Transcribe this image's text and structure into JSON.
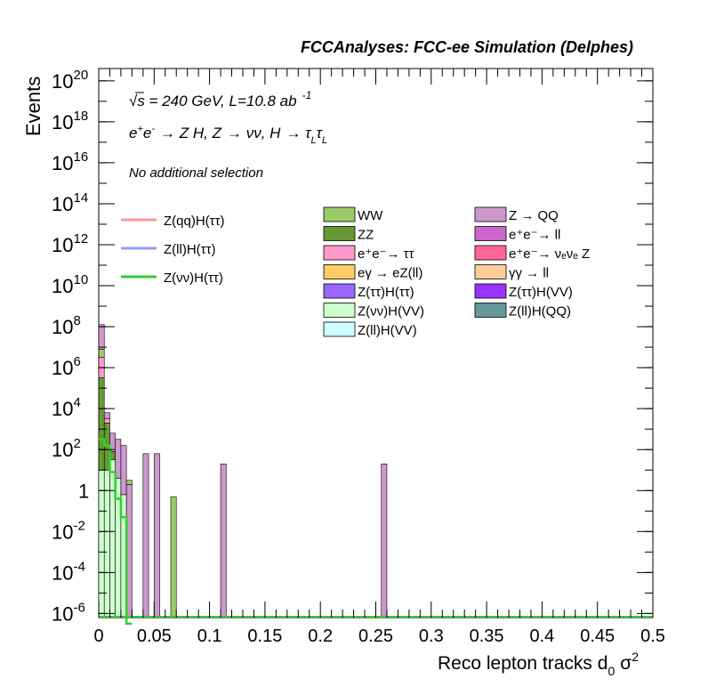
{
  "chart_data": {
    "type": "bar",
    "title": "FCCAnalyses: FCC-ee Simulation (Delphes)",
    "annotations": {
      "energy_lumi": "√s = 240 GeV, L=10.8 ab",
      "energy_lumi_exp": "-1",
      "process": "e⁺e⁻ → Z H, Z → νν, H → τ_L τ_L",
      "process_parts": {
        "e": "e",
        "plus": "+",
        "minus": "-",
        "arrow1": "→ Z H, Z",
        "arrow2": "→ νν, H",
        "arrow3": "→ τ",
        "sub1": "L",
        "tau2": "τ",
        "sub2": "L"
      },
      "selection": "No additional selection"
    },
    "xlabel": "Reco lepton tracks d",
    "xlabel_sub": "0",
    "xlabel_tail": "σ",
    "xlabel_sup": "2",
    "ylabel": "Events",
    "xlim": [
      0,
      0.5
    ],
    "ylim_log10": [
      -6.2,
      20.6
    ],
    "yscale": "log",
    "xticks": [
      "0",
      "0.05",
      "0.1",
      "0.15",
      "0.2",
      "0.25",
      "0.3",
      "0.35",
      "0.4",
      "0.45",
      "0.5"
    ],
    "yticks": [
      {
        "base": "10",
        "exp": "20",
        "log": 20
      },
      {
        "base": "10",
        "exp": "18",
        "log": 18
      },
      {
        "base": "10",
        "exp": "16",
        "log": 16
      },
      {
        "base": "10",
        "exp": "14",
        "log": 14
      },
      {
        "base": "10",
        "exp": "12",
        "log": 12
      },
      {
        "base": "10",
        "exp": "10",
        "log": 10
      },
      {
        "base": "10",
        "exp": "8",
        "log": 8
      },
      {
        "base": "10",
        "exp": "6",
        "log": 6
      },
      {
        "base": "10",
        "exp": "4",
        "log": 4
      },
      {
        "base": "10",
        "exp": "2",
        "log": 2
      },
      {
        "base": "1",
        "exp": "",
        "log": 0
      },
      {
        "base": "10",
        "exp": "-2",
        "log": -2
      },
      {
        "base": "10",
        "exp": "-4",
        "log": -4
      },
      {
        "base": "10",
        "exp": "-6",
        "log": -6
      }
    ],
    "bin_width": 0.005,
    "stack_bins": [
      {
        "x0": 0.0,
        "layers": [
          {
            "name": "Z(vv)H(VV)",
            "log": 1
          },
          {
            "name": "Z(ττ)H(VV)",
            "log": 0.3
          },
          {
            "name": "Z(ττ)H(ττ)",
            "log": 0.5
          },
          {
            "name": "ZZ",
            "log": 5.5
          },
          {
            "name": "e+e- → ττ",
            "log": 6.5
          },
          {
            "name": "WW",
            "log": 6.9
          },
          {
            "name": "Z → QQ",
            "log": 8.1
          }
        ]
      },
      {
        "x0": 0.005,
        "layers": [
          {
            "name": "Z(vv)H(VV)",
            "log": 1
          },
          {
            "name": "ZZ",
            "log": 3.3
          },
          {
            "name": "e+e- → ττ",
            "log": 3.5
          },
          {
            "name": "Z → QQ",
            "log": 3.8
          }
        ]
      },
      {
        "x0": 0.01,
        "layers": [
          {
            "name": "Z(vv)H(VV)",
            "log": 1.5
          },
          {
            "name": "ZZ",
            "log": 1.9
          },
          {
            "name": "Z → QQ",
            "log": 2.8
          }
        ]
      },
      {
        "x0": 0.015,
        "layers": [
          {
            "name": "Z(vv)H(VV)",
            "log": 0.6
          },
          {
            "name": "Z → QQ",
            "log": 2.5
          }
        ]
      },
      {
        "x0": 0.02,
        "layers": [
          {
            "name": "Z(vv)H(VV)",
            "log": -0.2
          },
          {
            "name": "Z → QQ",
            "log": 2.2
          }
        ]
      },
      {
        "x0": 0.025,
        "layers": [
          {
            "name": "Z → QQ",
            "log": 0.3
          },
          {
            "name": "WW",
            "log": 0.5
          }
        ]
      },
      {
        "x0": 0.04,
        "layers": [
          {
            "name": "Z → QQ",
            "log": 1.8
          }
        ]
      },
      {
        "x0": 0.05,
        "layers": [
          {
            "name": "Z → QQ",
            "log": 1.8
          }
        ]
      },
      {
        "x0": 0.065,
        "layers": [
          {
            "name": "WW",
            "log": -0.3
          }
        ]
      },
      {
        "x0": 0.11,
        "layers": [
          {
            "name": "Z → QQ",
            "log": 1.3
          }
        ]
      },
      {
        "x0": 0.255,
        "layers": [
          {
            "name": "Z → QQ",
            "log": 1.3
          }
        ]
      }
    ],
    "lines": [
      {
        "name": "Z(qq)H(ττ)",
        "color": "#ff9999",
        "points_log": []
      },
      {
        "name": "Z(ll)H(ττ)",
        "color": "#9999ff",
        "points_log": []
      },
      {
        "name": "Z(νν)H(ττ)",
        "color": "#33cc33",
        "points_log": [
          [
            0,
            2.5
          ],
          [
            0.005,
            2.2
          ],
          [
            0.01,
            0.9
          ],
          [
            0.015,
            -0.4
          ],
          [
            0.02,
            -1.3
          ],
          [
            0.025,
            -6.5
          ]
        ]
      }
    ],
    "legend_lines": [
      {
        "label": "Z(qq)H(ττ)",
        "color": "#ff9999"
      },
      {
        "label": "Z(ll)H(ττ)",
        "color": "#9999ff"
      },
      {
        "label": "Z(νν)H(ττ)",
        "color": "#33cc33"
      }
    ],
    "legend_col1": [
      {
        "label": "WW",
        "color": "#99cc66"
      },
      {
        "label": "ZZ",
        "color": "#669933"
      },
      {
        "label": "e⁺e⁻→ ττ",
        "color": "#ff99cc"
      },
      {
        "label": "eγ → eZ(ll)",
        "color": "#ffcc66"
      },
      {
        "label": "Z(ττ)H(ττ)",
        "color": "#9966ff"
      },
      {
        "label": "Z(νν)H(VV)",
        "color": "#ccffcc"
      },
      {
        "label": "Z(ll)H(VV)",
        "color": "#ccffff"
      }
    ],
    "legend_col2": [
      {
        "label": "Z → QQ",
        "color": "#cc99cc"
      },
      {
        "label": "e⁺e⁻→ ll",
        "color": "#cc66cc"
      },
      {
        "label": "e⁺e⁻→ νₑνₑ Z",
        "color": "#ff6699"
      },
      {
        "label": "γγ → ll",
        "color": "#ffcc99"
      },
      {
        "label": "Z(ττ)H(VV)",
        "color": "#9933ff"
      },
      {
        "label": "Z(ll)H(QQ)",
        "color": "#669999"
      }
    ],
    "grid": false,
    "legend_placement": "center-right"
  }
}
